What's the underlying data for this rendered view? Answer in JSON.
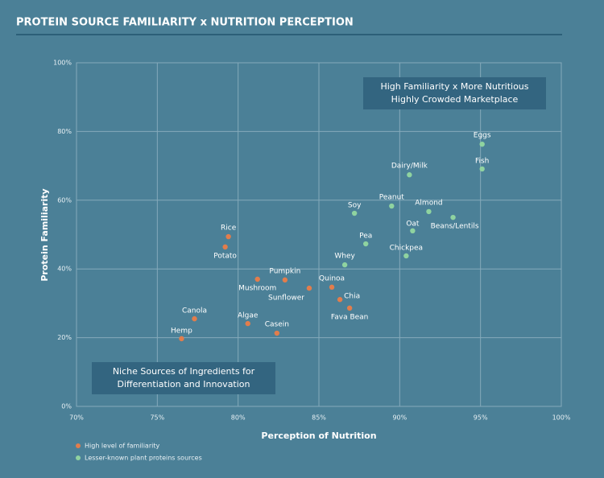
{
  "chart_data": {
    "type": "scatter",
    "title": "PROTEIN SOURCE FAMILIARITY x NUTRITION PERCEPTION",
    "x_label": "Perception of Nutrition",
    "y_label": "Protein Familiarity",
    "xlim": [
      70,
      100
    ],
    "xticks": [
      {
        "value": 70,
        "label": "70%"
      },
      {
        "value": 75,
        "label": "75%"
      },
      {
        "value": 80,
        "label": "80%"
      },
      {
        "value": 85,
        "label": "85%"
      },
      {
        "value": 90,
        "label": "90%"
      },
      {
        "value": 95,
        "label": "95%"
      },
      {
        "value": 100,
        "label": "100%"
      }
    ],
    "ylim": [
      0,
      100
    ],
    "yticks": [
      {
        "value": 0,
        "label": "0%"
      },
      {
        "value": 20,
        "label": "20%"
      },
      {
        "value": 40,
        "label": "40%"
      },
      {
        "value": 60,
        "label": "60%"
      },
      {
        "value": 80,
        "label": "80%"
      },
      {
        "value": 100,
        "label": "100%"
      }
    ],
    "grid": true,
    "legend": "bottom-left",
    "series": [
      {
        "name": "High level of familiarity",
        "color": "#e27d4c",
        "labels": [
          "Rice",
          "Potato",
          "Pumpkin",
          "Mushroom",
          "Sunflower",
          "Quinoa",
          "Chia",
          "Fava Bean",
          "Canola",
          "Algae",
          "Casein",
          "Hemp"
        ],
        "x": [
          79.4,
          79.2,
          82.9,
          81.2,
          84.4,
          85.8,
          86.3,
          86.9,
          77.3,
          80.6,
          82.4,
          76.5
        ],
        "values": [
          49.4,
          46.4,
          36.8,
          37.0,
          34.4,
          34.7,
          31.1,
          28.6,
          25.5,
          24.1,
          21.3,
          19.7
        ]
      },
      {
        "name": "Lesser-known plant proteins sources",
        "color": "#8fd3a0",
        "labels": [
          "Eggs",
          "Fish",
          "Dairy/Milk",
          "Peanut",
          "Almond",
          "Beans/Lentils",
          "Soy",
          "Oat",
          "Pea",
          "Chickpea",
          "Whey"
        ],
        "x": [
          95.1,
          95.1,
          90.6,
          89.5,
          91.8,
          93.3,
          87.2,
          90.8,
          87.9,
          90.4,
          86.6
        ],
        "values": [
          76.3,
          69.1,
          67.4,
          58.3,
          56.7,
          55.0,
          56.2,
          51.1,
          47.3,
          43.8,
          41.2
        ]
      }
    ],
    "annotations": [
      {
        "lines": [
          "High Familiarity x More Nutritious",
          "Highly Crowded Marketplace"
        ]
      },
      {
        "lines": [
          "Niche Sources of Ingredients for",
          "Differentiation and Innovation"
        ]
      }
    ]
  }
}
